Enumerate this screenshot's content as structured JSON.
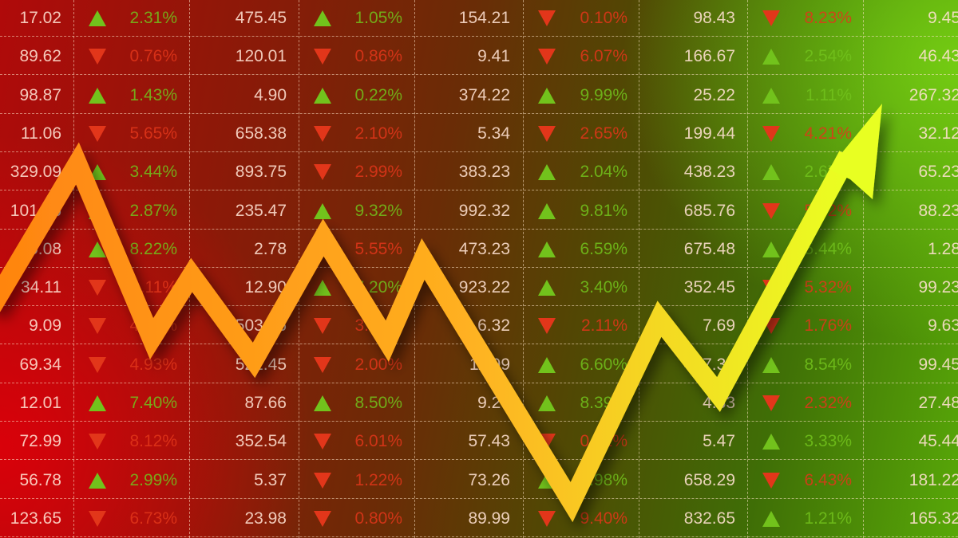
{
  "colors": {
    "up": "#72c21c",
    "down": "#e2361a",
    "arrow_start": "#ff8a10",
    "arrow_end": "#e8ff20"
  },
  "rows": [
    [
      [
        "17.02",
        "up",
        "2.31%"
      ],
      [
        "475.45",
        "up",
        "1.05%"
      ],
      [
        "154.21",
        "down",
        "0.10%"
      ],
      [
        "98.43",
        "down",
        "8.23%"
      ],
      [
        "9.45"
      ]
    ],
    [
      [
        "89.62",
        "down",
        "0.76%"
      ],
      [
        "120.01",
        "down",
        "0.86%"
      ],
      [
        "9.41",
        "down",
        "6.07%"
      ],
      [
        "166.67",
        "up",
        "2.54%"
      ],
      [
        "46.43"
      ]
    ],
    [
      [
        "98.87",
        "up",
        "1.43%"
      ],
      [
        "4.90",
        "up",
        "0.22%"
      ],
      [
        "374.22",
        "up",
        "9.99%"
      ],
      [
        "25.22",
        "up",
        "1.11%"
      ],
      [
        "267.32"
      ]
    ],
    [
      [
        "11.06",
        "down",
        "5.65%"
      ],
      [
        "658.38",
        "down",
        "2.10%"
      ],
      [
        "5.34",
        "down",
        "2.65%"
      ],
      [
        "199.44",
        "down",
        "4.21%"
      ],
      [
        "32.12"
      ]
    ],
    [
      [
        "329.09",
        "up",
        "3.44%"
      ],
      [
        "893.75",
        "down",
        "2.99%"
      ],
      [
        "383.23",
        "up",
        "2.04%"
      ],
      [
        "438.23",
        "up",
        "2.67%"
      ],
      [
        "65.23"
      ]
    ],
    [
      [
        "101.56",
        "up",
        "2.87%"
      ],
      [
        "235.47",
        "up",
        "9.32%"
      ],
      [
        "992.32",
        "up",
        "9.81%"
      ],
      [
        "685.76",
        "down",
        "5.52%"
      ],
      [
        "88.23"
      ]
    ],
    [
      [
        "5.08",
        "up",
        "8.22%"
      ],
      [
        "2.78",
        "down",
        "5.55%"
      ],
      [
        "473.23",
        "up",
        "6.59%"
      ],
      [
        "675.48",
        "up",
        "5.44%"
      ],
      [
        "1.28"
      ]
    ],
    [
      [
        "34.11",
        "down",
        "1.11%"
      ],
      [
        "12.90",
        "up",
        "7.20%"
      ],
      [
        "923.22",
        "up",
        "3.40%"
      ],
      [
        "352.45",
        "down",
        "5.32%"
      ],
      [
        "99.23"
      ]
    ],
    [
      [
        "9.09",
        "down",
        "4.21%"
      ],
      [
        "503.46",
        "down",
        "3.12%"
      ],
      [
        "6.32",
        "down",
        "2.11%"
      ],
      [
        "7.69",
        "down",
        "1.76%"
      ],
      [
        "9.63"
      ]
    ],
    [
      [
        "69.34",
        "down",
        "4.93%"
      ],
      [
        "521.45",
        "down",
        "2.00%"
      ],
      [
        "11.99",
        "up",
        "6.60%"
      ],
      [
        "457.38",
        "up",
        "8.54%"
      ],
      [
        "99.45"
      ]
    ],
    [
      [
        "12.01",
        "up",
        "7.40%"
      ],
      [
        "87.66",
        "up",
        "8.50%"
      ],
      [
        "9.23",
        "up",
        "8.39%"
      ],
      [
        "4.33",
        "down",
        "2.32%"
      ],
      [
        "27.48"
      ]
    ],
    [
      [
        "72.99",
        "down",
        "8.12%"
      ],
      [
        "352.54",
        "down",
        "6.01%"
      ],
      [
        "57.43",
        "down",
        "0.41%"
      ],
      [
        "5.47",
        "up",
        "3.33%"
      ],
      [
        "45.44"
      ]
    ],
    [
      [
        "56.78",
        "up",
        "2.99%"
      ],
      [
        "5.37",
        "down",
        "1.22%"
      ],
      [
        "73.26",
        "up",
        "4.98%"
      ],
      [
        "658.29",
        "down",
        "6.43%"
      ],
      [
        "181.22"
      ]
    ],
    [
      [
        "123.65",
        "down",
        "6.73%"
      ],
      [
        "23.98",
        "down",
        "0.80%"
      ],
      [
        "89.99",
        "down",
        "9.40%"
      ],
      [
        "832.65",
        "up",
        "1.21%"
      ],
      [
        "165.32"
      ]
    ]
  ],
  "arrow_icon": "trend-up-arrow-icon"
}
